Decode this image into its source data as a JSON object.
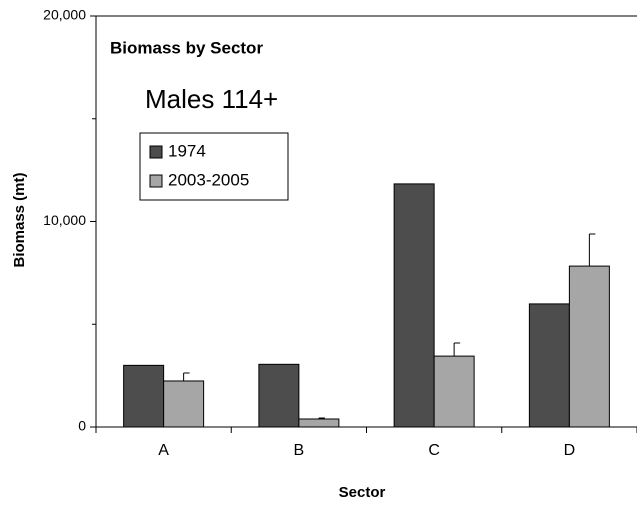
{
  "chart_data": {
    "type": "bar",
    "title": "Biomass by Sector",
    "subtitle": "Males 114+",
    "x_label": "Sector",
    "y_label": "Biomass (mt)",
    "categories": [
      "A",
      "B",
      "C",
      "D"
    ],
    "series": [
      {
        "name": "1974",
        "color": "#4d4d4d",
        "values": [
          3000,
          3050,
          11830,
          5990
        ]
      },
      {
        "name": "2003-2005",
        "color": "#a6a6a6",
        "values": [
          2240,
          390,
          3450,
          7830
        ],
        "errors": [
          390,
          50,
          640,
          1560
        ]
      }
    ],
    "ylim": [
      0,
      20000
    ],
    "yticks": [
      0,
      {
        "value": 10000,
        "label": "10,000"
      },
      {
        "value": 20000,
        "label": "20,000"
      }
    ],
    "yminorticks": [
      5000,
      15000
    ]
  }
}
